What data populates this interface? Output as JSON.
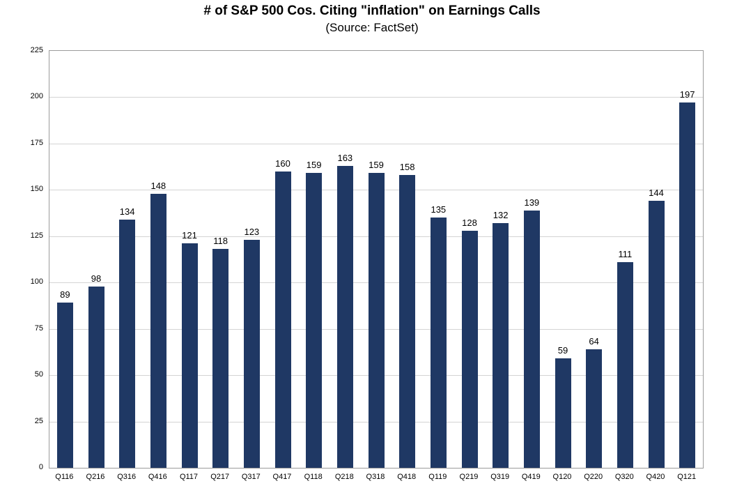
{
  "header": {
    "title": "# of S&P 500 Cos. Citing \"inflation\" on Earnings Calls",
    "subtitle": "(Source: FactSet)"
  },
  "chart_data": {
    "type": "bar",
    "title": "# of S&P 500 Cos. Citing \"inflation\" on Earnings Calls",
    "subtitle": "(Source: FactSet)",
    "categories": [
      "Q116",
      "Q216",
      "Q316",
      "Q416",
      "Q117",
      "Q217",
      "Q317",
      "Q417",
      "Q118",
      "Q218",
      "Q318",
      "Q418",
      "Q119",
      "Q219",
      "Q319",
      "Q419",
      "Q120",
      "Q220",
      "Q320",
      "Q420",
      "Q121"
    ],
    "values": [
      89,
      98,
      134,
      148,
      121,
      118,
      123,
      160,
      159,
      163,
      159,
      158,
      135,
      128,
      132,
      139,
      59,
      64,
      111,
      144,
      197
    ],
    "xlabel": "",
    "ylabel": "",
    "ylim": [
      0,
      225
    ],
    "ytick_step": 25,
    "grid": true,
    "legend": "none",
    "data_labels": true,
    "bar_color": "#1F3864",
    "gridline_color": "#d4d4d4",
    "border_color": "#9b9b9b",
    "text_color": "#000000"
  }
}
